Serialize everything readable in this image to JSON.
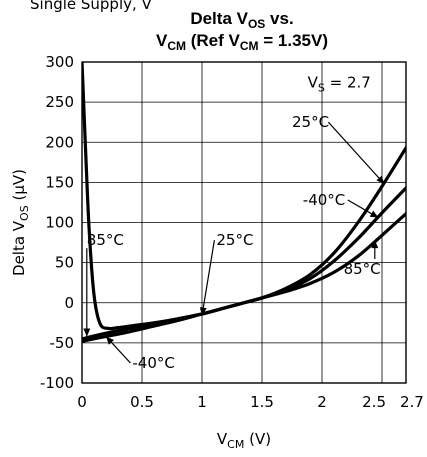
{
  "header_text": "Single Supply, V",
  "chart_data": {
    "type": "line",
    "title_line1": "Delta V",
    "title_line1_sub": "OS",
    "title_line1_tail": " vs.",
    "title_line2": "V",
    "title_line2_sub": "CM",
    "title_line2_mid": " (Ref V",
    "title_line2_sub2": "CM",
    "title_line2_tail": " = 1.35V)",
    "xlabel": "V",
    "xlabel_sub": "CM",
    "xlabel_tail": " (V)",
    "ylabel": "Delta V",
    "ylabel_sub": "OS",
    "ylabel_tail": " (µV)",
    "xlim": [
      0,
      2.7
    ],
    "ylim": [
      -100,
      300
    ],
    "x_ticks": [
      0,
      0.5,
      1,
      1.5,
      2,
      2.5,
      2.7
    ],
    "x_tick_labels": [
      "0",
      "0.5",
      "1",
      "1.5",
      "2",
      "2.5",
      "2.7"
    ],
    "y_ticks": [
      -100,
      -50,
      0,
      50,
      100,
      150,
      200,
      250,
      300
    ],
    "y_tick_labels": [
      "-100",
      "-50",
      "0",
      "50",
      "100",
      "150",
      "200",
      "250",
      "300"
    ],
    "grid": true,
    "vs_label": "V",
    "vs_label_sub": "S",
    "vs_label_tail": " = 2.7",
    "series": [
      {
        "name": "25°C",
        "x": [
          0,
          0.2,
          0.4,
          0.6,
          0.8,
          1.0,
          1.2,
          1.35,
          1.5,
          1.7,
          1.9,
          2.1,
          2.3,
          2.5,
          2.7
        ],
        "y": [
          -45,
          -38,
          -32,
          -26,
          -20,
          -14,
          -6,
          0,
          6,
          18,
          35,
          62,
          100,
          145,
          193
        ]
      },
      {
        "name": "-40°C",
        "x": [
          0,
          0.2,
          0.4,
          0.6,
          0.8,
          1.0,
          1.2,
          1.35,
          1.5,
          1.7,
          1.9,
          2.1,
          2.3,
          2.5,
          2.7
        ],
        "y": [
          -48,
          -42,
          -36,
          -29,
          -22,
          -14,
          -6,
          0,
          6,
          16,
          30,
          52,
          80,
          112,
          143
        ]
      },
      {
        "name": "85°C",
        "x": [
          0,
          0.03,
          0.06,
          0.1,
          0.15,
          0.22,
          0.3,
          0.45,
          0.6,
          0.8,
          1.0,
          1.2,
          1.35,
          1.5,
          1.7,
          1.9,
          2.1,
          2.3,
          2.5,
          2.7
        ],
        "y": [
          300,
          190,
          90,
          10,
          -26,
          -32,
          -31,
          -28,
          -25,
          -20,
          -14,
          -6,
          0,
          6,
          14,
          24,
          38,
          58,
          84,
          111
        ]
      }
    ],
    "annotations": [
      {
        "text": "85°C",
        "series": "85°C",
        "x": 0.04,
        "y": -42,
        "lx": 0.04,
        "ly": 78,
        "anchor": "start"
      },
      {
        "text": "25°C",
        "series": "25°C",
        "x": 1.0,
        "y": -16,
        "lx": 1.12,
        "ly": 78,
        "anchor": "start"
      },
      {
        "text": "25°C",
        "series": "25°C",
        "x": 2.52,
        "y": 148,
        "lx": 1.75,
        "ly": 225,
        "anchor": "start"
      },
      {
        "text": "-40°C",
        "series": "-40°C",
        "x": 2.47,
        "y": 106,
        "lx": 1.84,
        "ly": 128,
        "anchor": "start"
      },
      {
        "text": "85°C",
        "series": "85°C",
        "x": 2.44,
        "y": 78,
        "lx": 2.18,
        "ly": 42,
        "anchor": "start"
      },
      {
        "text": "-40°C",
        "series": "-40°C",
        "x": 0.2,
        "y": -42,
        "lx": 0.42,
        "ly": -75,
        "anchor": "start"
      }
    ]
  }
}
